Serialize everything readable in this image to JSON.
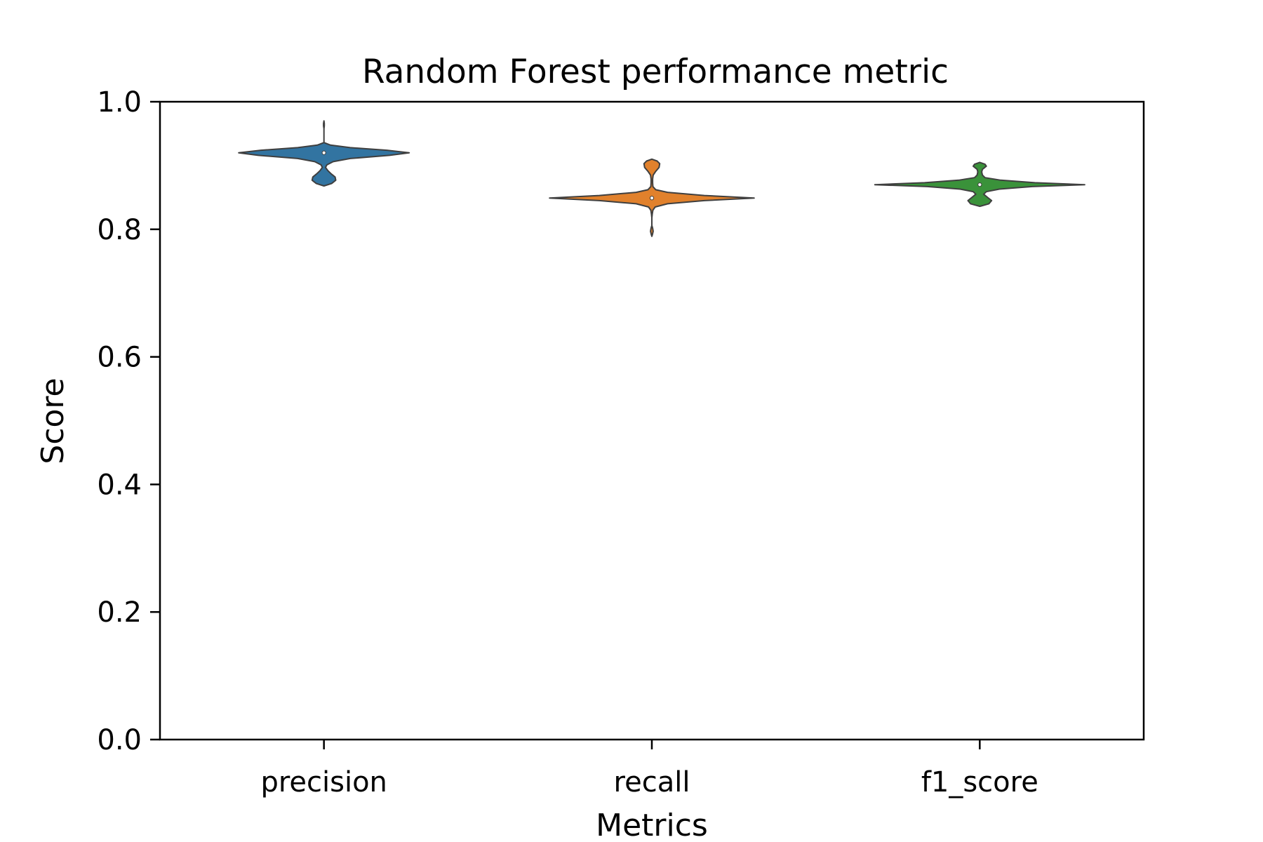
{
  "chart_data": {
    "type": "violin",
    "title": "Random Forest performance metric",
    "xlabel": "Metrics",
    "ylabel": "Score",
    "ylim": [
      0.0,
      1.0
    ],
    "yticks": [
      0.0,
      0.2,
      0.4,
      0.6,
      0.8,
      1.0
    ],
    "ytick_labels": [
      "0.0",
      "0.2",
      "0.4",
      "0.6",
      "0.8",
      "1.0"
    ],
    "grid": false,
    "categories": [
      "precision",
      "recall",
      "f1_score"
    ],
    "series": [
      {
        "name": "precision",
        "color": "#3274a1",
        "median": 0.92,
        "min": 0.868,
        "max": 0.97,
        "profile": [
          [
            0.868,
            0.0
          ],
          [
            0.872,
            0.06
          ],
          [
            0.877,
            0.09
          ],
          [
            0.882,
            0.085
          ],
          [
            0.887,
            0.055
          ],
          [
            0.892,
            0.03
          ],
          [
            0.897,
            0.012
          ],
          [
            0.901,
            0.022
          ],
          [
            0.906,
            0.07
          ],
          [
            0.911,
            0.2
          ],
          [
            0.916,
            0.5
          ],
          [
            0.92,
            0.65
          ],
          [
            0.924,
            0.48
          ],
          [
            0.928,
            0.2
          ],
          [
            0.932,
            0.05
          ],
          [
            0.936,
            0.0
          ],
          [
            0.942,
            0.0
          ],
          [
            0.948,
            0.0
          ],
          [
            0.954,
            0.0
          ],
          [
            0.958,
            0.0
          ],
          [
            0.962,
            0.003
          ],
          [
            0.966,
            0.003
          ],
          [
            0.97,
            0.0
          ]
        ]
      },
      {
        "name": "recall",
        "color": "#e1812c",
        "median": 0.849,
        "min": 0.789,
        "max": 0.91,
        "profile": [
          [
            0.789,
            0.0
          ],
          [
            0.793,
            0.006
          ],
          [
            0.797,
            0.01
          ],
          [
            0.802,
            0.006
          ],
          [
            0.806,
            0.0
          ],
          [
            0.812,
            0.0
          ],
          [
            0.818,
            0.0
          ],
          [
            0.824,
            0.003
          ],
          [
            0.83,
            0.008
          ],
          [
            0.835,
            0.025
          ],
          [
            0.84,
            0.12
          ],
          [
            0.845,
            0.4
          ],
          [
            0.849,
            0.78
          ],
          [
            0.853,
            0.4
          ],
          [
            0.858,
            0.12
          ],
          [
            0.862,
            0.03
          ],
          [
            0.867,
            0.008
          ],
          [
            0.873,
            0.006
          ],
          [
            0.879,
            0.006
          ],
          [
            0.885,
            0.01
          ],
          [
            0.891,
            0.03
          ],
          [
            0.897,
            0.055
          ],
          [
            0.903,
            0.06
          ],
          [
            0.907,
            0.04
          ],
          [
            0.91,
            0.0
          ]
        ]
      },
      {
        "name": "f1_score",
        "color": "#3a923a",
        "median": 0.87,
        "min": 0.836,
        "max": 0.905,
        "profile": [
          [
            0.836,
            0.0
          ],
          [
            0.84,
            0.07
          ],
          [
            0.845,
            0.09
          ],
          [
            0.85,
            0.06
          ],
          [
            0.855,
            0.03
          ],
          [
            0.859,
            0.05
          ],
          [
            0.863,
            0.15
          ],
          [
            0.867,
            0.4
          ],
          [
            0.87,
            0.8
          ],
          [
            0.873,
            0.42
          ],
          [
            0.877,
            0.16
          ],
          [
            0.881,
            0.04
          ],
          [
            0.885,
            0.02
          ],
          [
            0.89,
            0.015
          ],
          [
            0.894,
            0.02
          ],
          [
            0.899,
            0.05
          ],
          [
            0.902,
            0.04
          ],
          [
            0.905,
            0.0
          ]
        ]
      }
    ]
  }
}
